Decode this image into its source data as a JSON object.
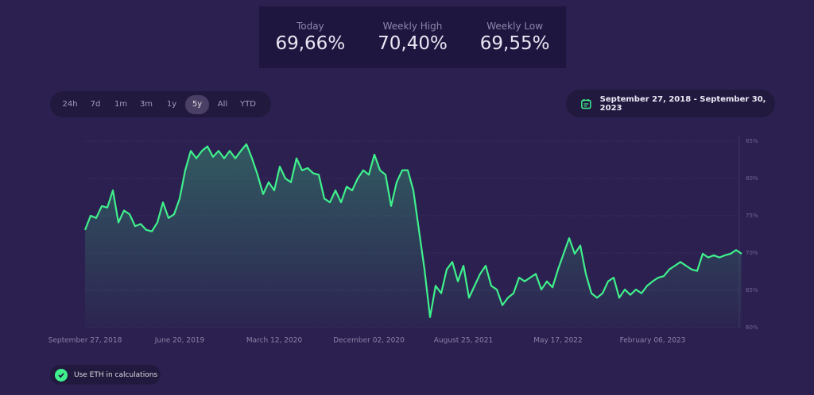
{
  "stats": [
    {
      "label": "Today",
      "value": "69,66%"
    },
    {
      "label": "Weekly High",
      "value": "70,40%"
    },
    {
      "label": "Weekly Low",
      "value": "69,55%"
    }
  ],
  "range_buttons": {
    "items": [
      "24h",
      "7d",
      "1m",
      "3m",
      "1y",
      "5y",
      "All",
      "YTD"
    ],
    "active": 5
  },
  "date_range": "September 27, 2018 - September 30, 2023",
  "option": {
    "label": "Use ETH in calculations",
    "checked": true
  },
  "chart_data": {
    "type": "line",
    "color": "#3ff08c",
    "grid": true,
    "categories": [
      "September 27, 2018",
      null,
      null,
      null,
      null,
      null,
      null,
      null,
      null,
      null,
      null,
      null,
      null,
      null,
      null,
      null,
      null,
      "June 20, 2019",
      null,
      null,
      null,
      null,
      null,
      null,
      null,
      null,
      null,
      null,
      null,
      null,
      null,
      null,
      null,
      null,
      "March 12, 2020",
      null,
      null,
      null,
      null,
      null,
      null,
      null,
      null,
      null,
      null,
      null,
      null,
      null,
      null,
      null,
      null,
      "December 02, 2020",
      null,
      null,
      null,
      null,
      null,
      null,
      null,
      null,
      null,
      null,
      null,
      null,
      null,
      null,
      null,
      null,
      "August 25, 2021",
      null,
      null,
      null,
      null,
      null,
      null,
      null,
      null,
      null,
      null,
      null,
      null,
      null,
      null,
      null,
      null,
      "May 17, 2022",
      null,
      null,
      null,
      null,
      null,
      null,
      null,
      null,
      null,
      null,
      null,
      null,
      null,
      null,
      null,
      null,
      "February 06, 2023",
      null,
      null,
      null,
      null,
      null,
      null,
      null,
      null,
      null,
      null,
      null,
      null,
      null,
      null,
      null,
      null
    ],
    "values": [
      73.1,
      75.0,
      74.7,
      76.3,
      76.1,
      78.4,
      74.1,
      75.7,
      75.2,
      73.6,
      73.9,
      73.1,
      72.9,
      74.1,
      76.8,
      74.7,
      75.2,
      77.3,
      81.1,
      83.7,
      82.7,
      83.7,
      84.3,
      82.9,
      83.7,
      82.7,
      83.7,
      82.7,
      83.7,
      84.6,
      82.7,
      80.5,
      77.9,
      79.5,
      78.4,
      81.6,
      80.0,
      79.5,
      82.7,
      81.1,
      81.4,
      80.7,
      80.5,
      77.3,
      76.8,
      78.4,
      76.8,
      78.9,
      78.4,
      80.0,
      81.1,
      80.5,
      83.2,
      81.1,
      80.5,
      76.3,
      79.5,
      81.1,
      81.1,
      78.4,
      73.1,
      67.8,
      61.4,
      65.6,
      64.6,
      67.8,
      68.8,
      66.2,
      68.3,
      64.0,
      65.6,
      67.2,
      68.3,
      65.6,
      65.1,
      63.0,
      64.0,
      64.6,
      66.7,
      66.2,
      66.7,
      67.2,
      65.1,
      66.2,
      65.4,
      67.8,
      69.9,
      72.0,
      69.9,
      71.0,
      67.2,
      64.6,
      64.0,
      64.6,
      66.2,
      66.7,
      64.0,
      65.1,
      64.4,
      65.1,
      64.6,
      65.6,
      66.2,
      66.7,
      66.9,
      67.8,
      68.3,
      68.8,
      68.3,
      67.8,
      67.6,
      69.9,
      69.4,
      69.7,
      69.4,
      69.7,
      69.9,
      70.4,
      69.9
    ],
    "ylim": [
      60,
      85
    ],
    "yticks": [
      {
        "value": 60,
        "label": "60%"
      },
      {
        "value": 65,
        "label": "65%"
      },
      {
        "value": 70,
        "label": "70%"
      },
      {
        "value": 75,
        "label": "75%"
      },
      {
        "value": 80,
        "label": "80%"
      },
      {
        "value": 85,
        "label": "85%"
      }
    ]
  }
}
